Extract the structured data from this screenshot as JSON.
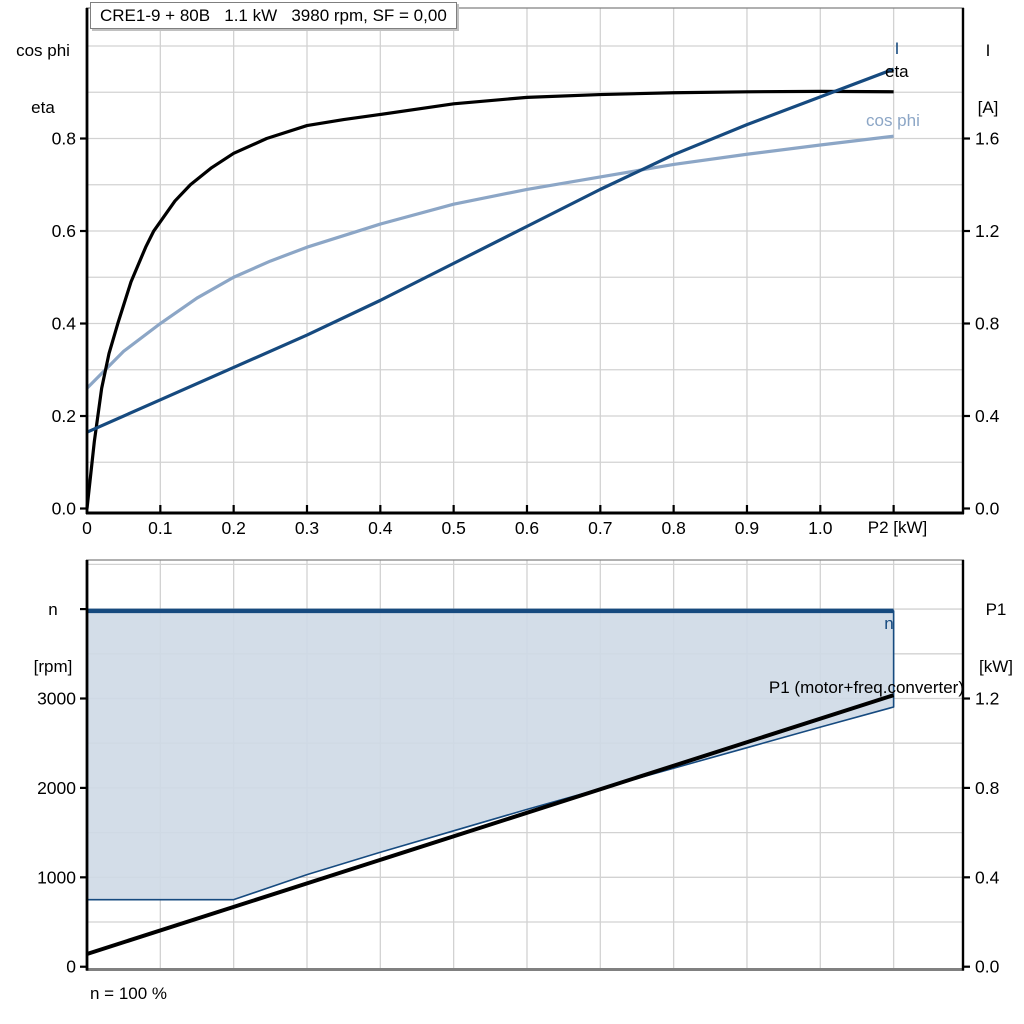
{
  "colors": {
    "black": "#000000",
    "dark_blue": "#164A7F",
    "light_blue": "#8CA6C6",
    "area_fill": "#CED9E5",
    "grid": "#D2D2D2",
    "frame": "#808080",
    "text": "#000000"
  },
  "chart_data": [
    {
      "type": "line",
      "title": "CRE1-9 + 80B   1.1 kW   3980 rpm, SF = 0,00",
      "xlabel": "P2 [kW]",
      "left_axis_title_lines": [
        "cos phi",
        "eta"
      ],
      "right_axis_title_lines": [
        "I",
        "[A]"
      ],
      "xlim": [
        0,
        1.1946
      ],
      "left_ylim": [
        -0.0097,
        1.0822
      ],
      "right_ylim": [
        -0.0195,
        2.1644
      ],
      "grid": {
        "x_step": 0.1,
        "left_y_step": 0.1
      },
      "x_ticks": {
        "values": [
          0,
          0.1,
          0.2,
          0.3,
          0.4,
          0.5,
          0.6,
          0.7,
          0.8,
          0.9,
          1.0,
          1.1
        ],
        "labels": [
          "0",
          "0.1",
          "0.2",
          "0.3",
          "0.4",
          "0.5",
          "0.6",
          "0.7",
          "0.8",
          "0.9",
          "1.0",
          ""
        ]
      },
      "left_ticks": {
        "values": [
          0,
          0.2,
          0.4,
          0.6,
          0.8
        ],
        "labels": [
          "0.0",
          "0.2",
          "0.4",
          "0.6",
          "0.8"
        ]
      },
      "right_ticks": {
        "values": [
          0,
          0.4,
          0.8,
          1.2,
          1.6
        ],
        "labels": [
          "0.0",
          "0.4",
          "0.8",
          "1.2",
          "1.6"
        ]
      },
      "series": [
        {
          "name": "cos phi",
          "axis": "left",
          "color": "light_blue",
          "width": 3.2,
          "x": [
            0,
            0.05,
            0.1,
            0.15,
            0.2,
            0.25,
            0.3,
            0.4,
            0.5,
            0.6,
            0.7,
            0.8,
            0.9,
            1.0,
            1.1
          ],
          "y": [
            0.26,
            0.34,
            0.4,
            0.455,
            0.5,
            0.535,
            0.565,
            0.615,
            0.658,
            0.69,
            0.717,
            0.744,
            0.766,
            0.786,
            0.805
          ]
        },
        {
          "name": "eta",
          "axis": "left",
          "color": "black",
          "width": 3.2,
          "x": [
            0,
            0.01,
            0.02,
            0.03,
            0.042,
            0.06,
            0.08,
            0.091,
            0.12,
            0.141,
            0.17,
            0.2,
            0.245,
            0.3,
            0.35,
            0.4,
            0.5,
            0.6,
            0.7,
            0.8,
            0.9,
            1.0,
            1.1
          ],
          "y": [
            0,
            0.145,
            0.26,
            0.335,
            0.4,
            0.49,
            0.565,
            0.6,
            0.665,
            0.7,
            0.737,
            0.768,
            0.8,
            0.828,
            0.841,
            0.852,
            0.875,
            0.889,
            0.895,
            0.899,
            0.901,
            0.902,
            0.901
          ]
        },
        {
          "name": "I",
          "axis": "right",
          "color": "dark_blue",
          "width": 3.2,
          "x": [
            0,
            0.1,
            0.2,
            0.3,
            0.4,
            0.5,
            0.6,
            0.7,
            0.8,
            0.9,
            1.0,
            1.1
          ],
          "y": [
            0.33,
            0.47,
            0.61,
            0.75,
            0.9,
            1.06,
            1.22,
            1.38,
            1.53,
            1.66,
            1.78,
            1.9
          ]
        }
      ]
    },
    {
      "type": "line",
      "title": "",
      "xlabel": "",
      "left_axis_title_lines": [
        "n",
        "[rpm]"
      ],
      "right_axis_title_lines": [
        "P1",
        "[kW]"
      ],
      "xlim": [
        0,
        1.1946
      ],
      "left_ylim": [
        -31,
        4549
      ],
      "right_ylim": [
        -0.0125,
        1.8198
      ],
      "grid": {
        "x_step": 0.1,
        "left_y_step": 500
      },
      "x_ticks": {
        "values": [],
        "labels": []
      },
      "left_ticks": {
        "values": [
          0,
          1000,
          2000,
          3000,
          4000
        ],
        "labels": [
          "0",
          "1000",
          "2000",
          "3000",
          ""
        ]
      },
      "right_ticks": {
        "values": [
          0,
          0.4,
          0.8,
          1.2
        ],
        "labels": [
          "0.0",
          "0.4",
          "0.8",
          "1.2"
        ]
      },
      "area": {
        "name": "speed-operating-range",
        "fill": "area_fill",
        "edge": "dark_blue",
        "upper_rpm": 3980,
        "lower_x": [
          0,
          0.2,
          0.3,
          0.4,
          0.5,
          0.6,
          0.7,
          0.8,
          0.9,
          1.0,
          1.1
        ],
        "lower_y": [
          750,
          750,
          1030,
          1280,
          1520,
          1760,
          1990,
          2220,
          2450,
          2680,
          2905
        ]
      },
      "series": [
        {
          "name": "n",
          "axis": "left",
          "color": "dark_blue",
          "width": 4.5,
          "x": [
            0,
            1.1
          ],
          "y": [
            3980,
            3980
          ]
        },
        {
          "name": "P1 (motor+freq.converter)",
          "axis": "right",
          "color": "black",
          "width": 4,
          "x": [
            0,
            1.1
          ],
          "y": [
            0.057,
            1.215
          ]
        }
      ],
      "footnote": "n = 100 %"
    }
  ]
}
